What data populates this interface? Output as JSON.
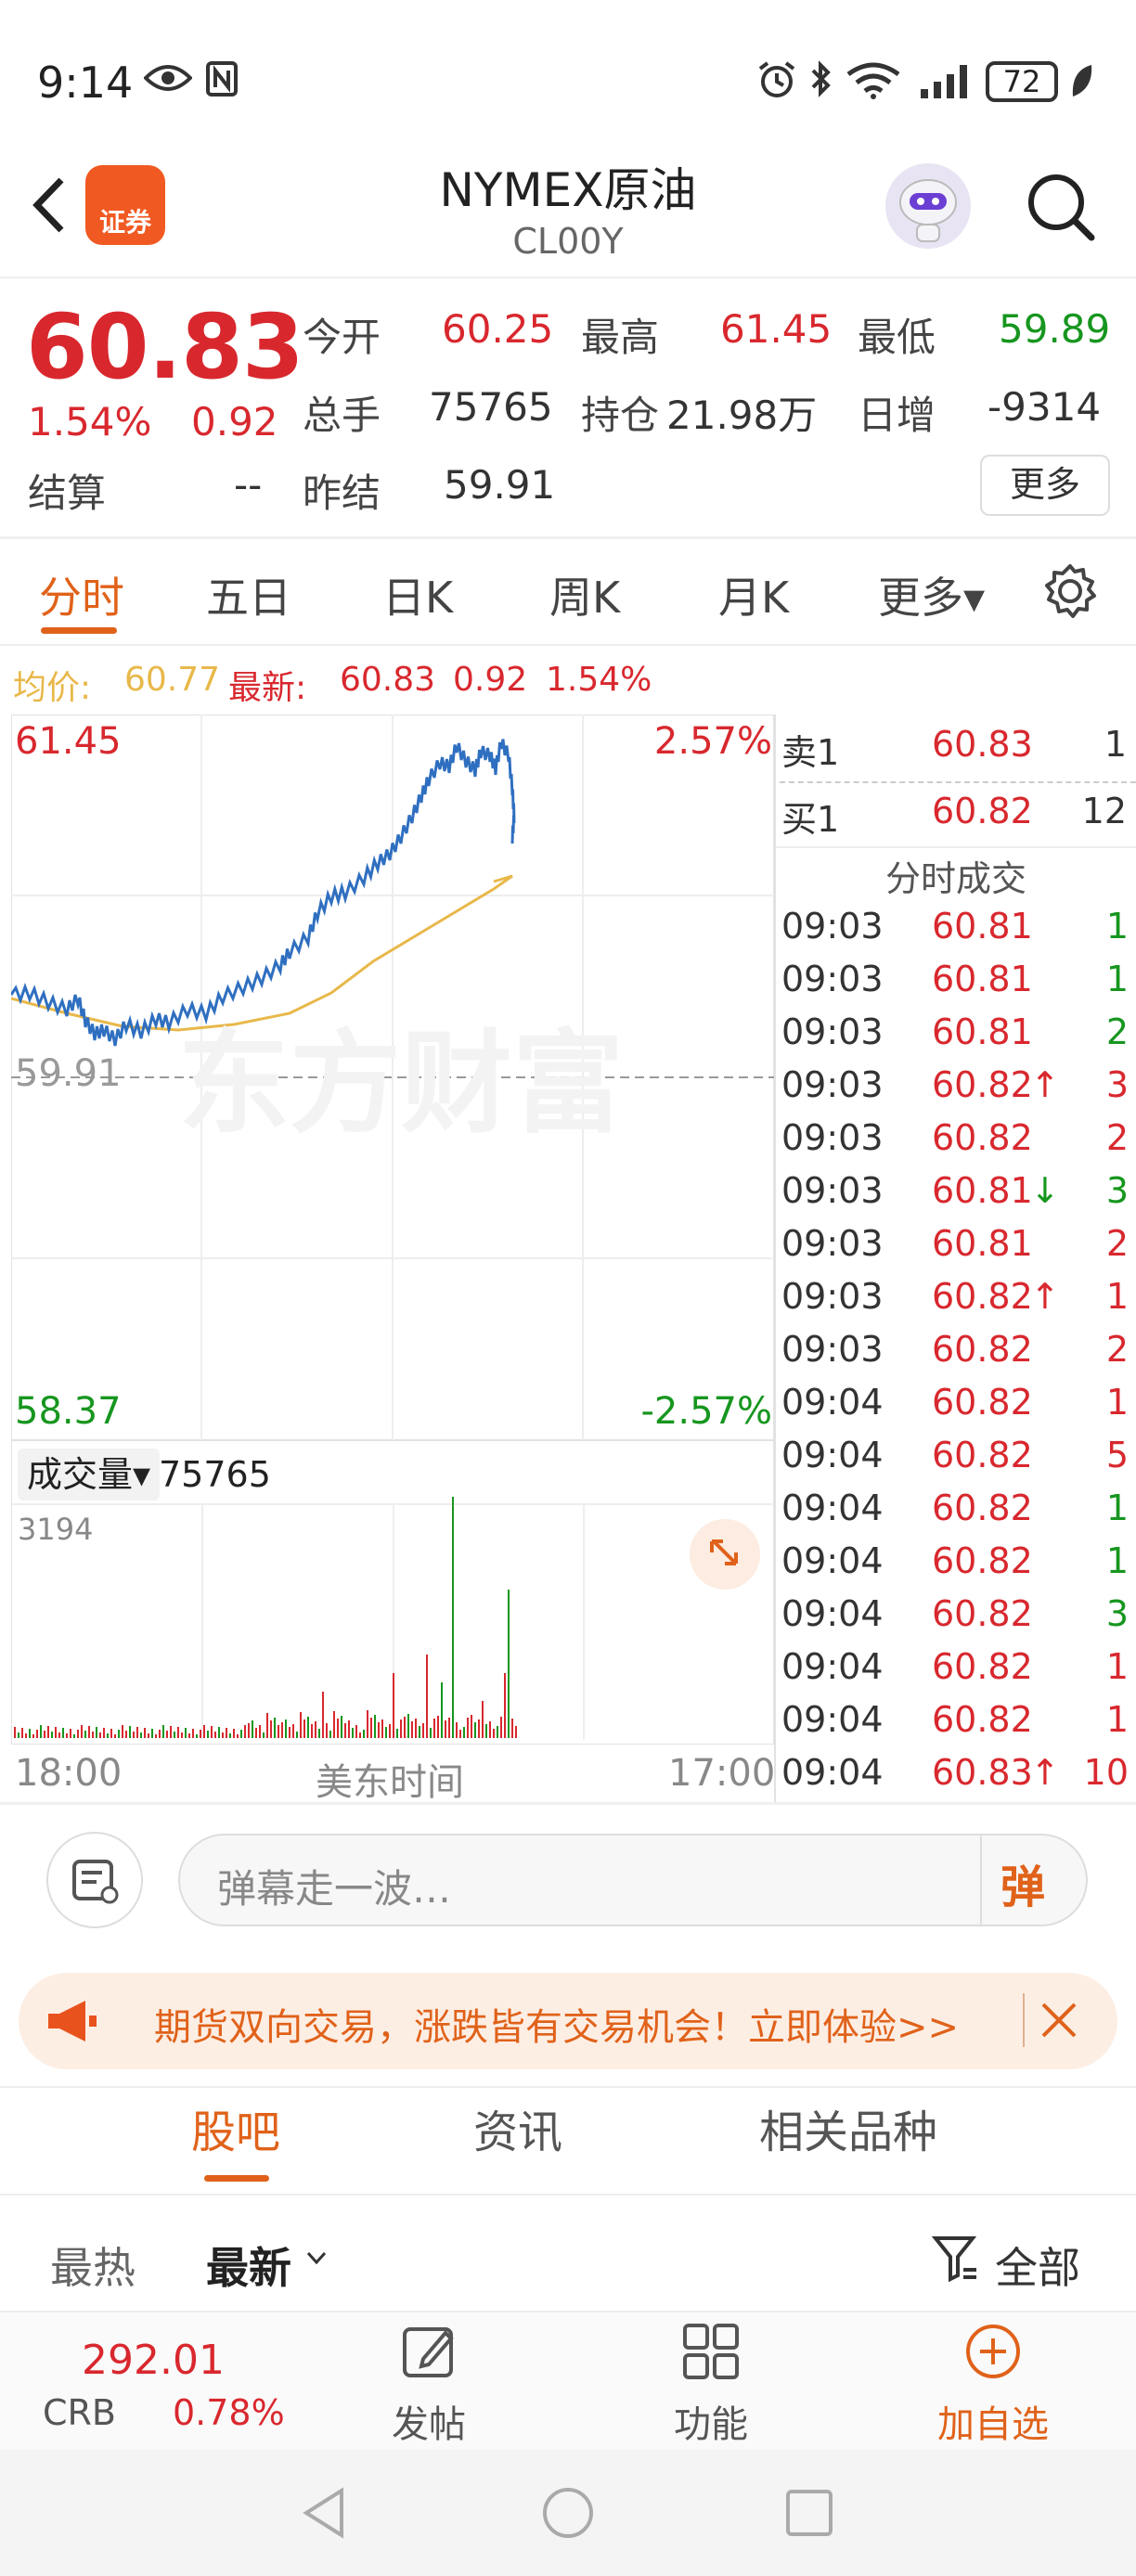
{
  "status_bar": {
    "time": "9:14",
    "battery": "72"
  },
  "header": {
    "title": "NYMEX原油",
    "code": "CL00Y",
    "badge": "证券"
  },
  "quote": {
    "price": "60.83",
    "change_pct": "1.54%",
    "change": "0.92",
    "open_label": "今开",
    "open": "60.25",
    "high_label": "最高",
    "high": "61.45",
    "low_label": "最低",
    "low": "59.89",
    "volume_label": "总手",
    "volume": "75765",
    "oi_label": "持仓",
    "oi": "21.98万",
    "daily_inc_label": "日增",
    "daily_inc": "-9314",
    "settle_label": "结算",
    "settle": "--",
    "prev_settle_label": "昨结",
    "prev_settle": "59.91",
    "more_label": "更多"
  },
  "tabs": [
    "分时",
    "五日",
    "日K",
    "周K",
    "月K",
    "更多▾"
  ],
  "info_line": {
    "avg_label": "均价:",
    "avg": "60.77",
    "last_label": "最新:",
    "last": "60.83",
    "chg": "0.92",
    "pct": "1.54%"
  },
  "chart_labels": {
    "high": "61.45",
    "high_pct": "2.57%",
    "mid": "59.91",
    "low": "58.37",
    "low_pct": "-2.57%",
    "watermark": "东方财富"
  },
  "volume_section": {
    "label": "成交量▾",
    "value": "75765",
    "max": "3194"
  },
  "time_axis": {
    "start": "18:00",
    "center": "美东时间",
    "end": "17:00"
  },
  "order_book": [
    {
      "label": "卖1",
      "price": "60.83",
      "qty": "1"
    },
    {
      "label": "买1",
      "price": "60.82",
      "qty": "12"
    }
  ],
  "trades_title": "分时成交",
  "trades": [
    {
      "t": "09:03",
      "p": "60.81",
      "arrow": "",
      "q": "1",
      "qc": "green"
    },
    {
      "t": "09:03",
      "p": "60.81",
      "arrow": "",
      "q": "1",
      "qc": "green"
    },
    {
      "t": "09:03",
      "p": "60.81",
      "arrow": "",
      "q": "2",
      "qc": "green"
    },
    {
      "t": "09:03",
      "p": "60.82",
      "arrow": "↑",
      "q": "3",
      "qc": "red"
    },
    {
      "t": "09:03",
      "p": "60.82",
      "arrow": "",
      "q": "2",
      "qc": "red"
    },
    {
      "t": "09:03",
      "p": "60.81",
      "arrow": "↓",
      "q": "3",
      "qc": "green"
    },
    {
      "t": "09:03",
      "p": "60.81",
      "arrow": "",
      "q": "2",
      "qc": "red"
    },
    {
      "t": "09:03",
      "p": "60.82",
      "arrow": "↑",
      "q": "1",
      "qc": "red"
    },
    {
      "t": "09:03",
      "p": "60.82",
      "arrow": "",
      "q": "2",
      "qc": "red"
    },
    {
      "t": "09:04",
      "p": "60.82",
      "arrow": "",
      "q": "1",
      "qc": "red"
    },
    {
      "t": "09:04",
      "p": "60.82",
      "arrow": "",
      "q": "5",
      "qc": "red"
    },
    {
      "t": "09:04",
      "p": "60.82",
      "arrow": "",
      "q": "1",
      "qc": "green"
    },
    {
      "t": "09:04",
      "p": "60.82",
      "arrow": "",
      "q": "1",
      "qc": "green"
    },
    {
      "t": "09:04",
      "p": "60.82",
      "arrow": "",
      "q": "3",
      "qc": "green"
    },
    {
      "t": "09:04",
      "p": "60.82",
      "arrow": "",
      "q": "1",
      "qc": "red"
    },
    {
      "t": "09:04",
      "p": "60.82",
      "arrow": "",
      "q": "1",
      "qc": "red"
    },
    {
      "t": "09:04",
      "p": "60.83",
      "arrow": "↑",
      "q": "10",
      "qc": "red"
    }
  ],
  "comment": {
    "placeholder": "弹幕走一波…",
    "send": "弹"
  },
  "banner": {
    "text": "期货双向交易，涨跌皆有交易机会！立即体验>>"
  },
  "sub_tabs": [
    "股吧",
    "资讯",
    "相关品种"
  ],
  "sort": {
    "hot": "最热",
    "new": "最新",
    "filter": "全部"
  },
  "bottom_bar": {
    "index_value": "292.01",
    "index_name": "CRB",
    "index_pct": "0.78%",
    "post": "发帖",
    "func": "功能",
    "watch": "加自选"
  },
  "colors": {
    "up": "#d8282e",
    "down": "#17961f",
    "accent": "#e0621a",
    "price_line": "#2f6fc0",
    "avg_line": "#e8b84a"
  }
}
